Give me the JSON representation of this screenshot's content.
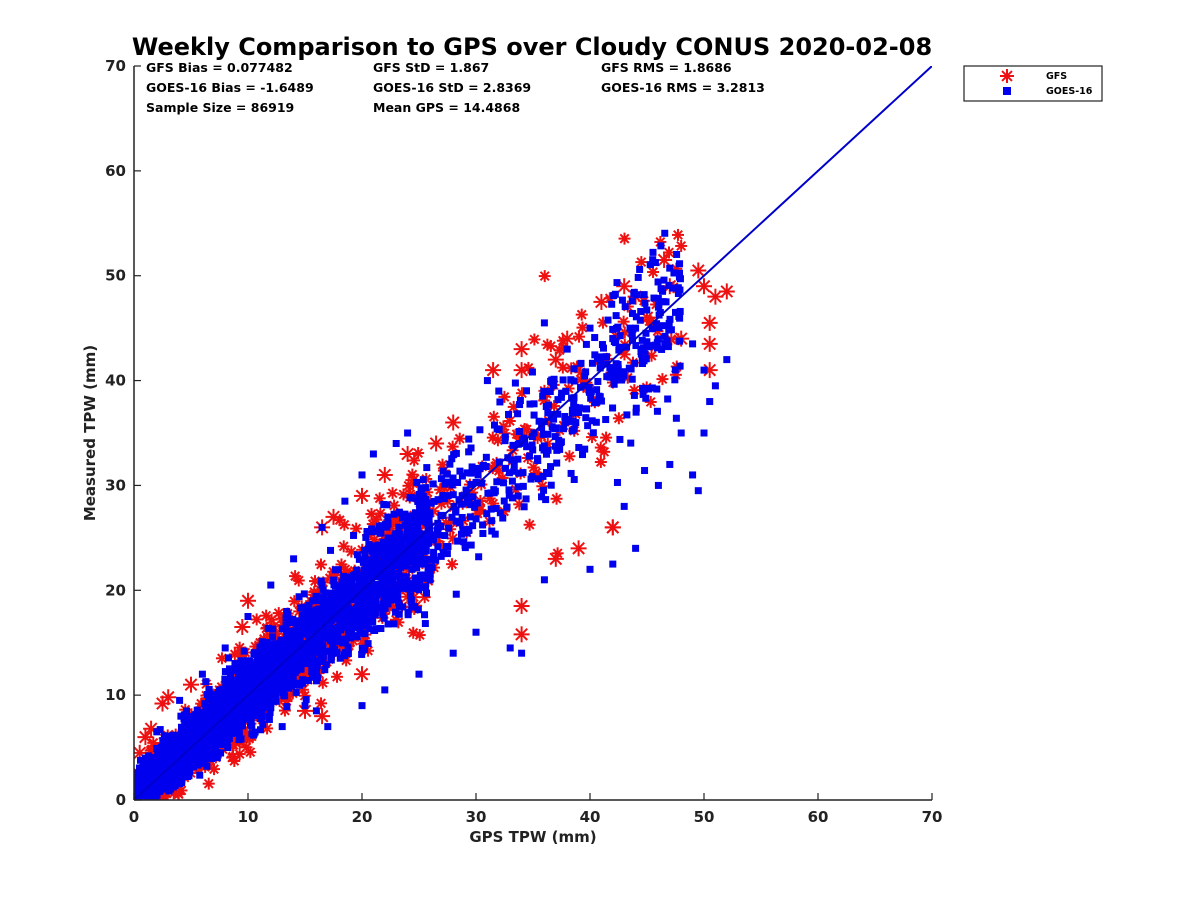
{
  "chart_data": {
    "type": "scatter",
    "title": "Weekly Comparison to GPS over Cloudy CONUS 2020-02-08",
    "xlabel": "GPS TPW (mm)",
    "ylabel": "Measured TPW (mm)",
    "xlim": [
      0,
      70
    ],
    "ylim": [
      0,
      70
    ],
    "xticks": [
      0,
      10,
      20,
      30,
      40,
      50,
      60,
      70
    ],
    "yticks": [
      0,
      10,
      20,
      30,
      40,
      50,
      60,
      70
    ],
    "grid": false,
    "legend_position": "top-right, outside plot area",
    "reference_line": {
      "label": "1:1 line",
      "x": [
        0,
        70
      ],
      "y": [
        0,
        70
      ],
      "color": "#0000cc"
    },
    "series": [
      {
        "name": "GFS",
        "marker": "asterisk",
        "color": "#ee1111",
        "sample_points": [
          [
            0.5,
            4.5
          ],
          [
            1,
            6
          ],
          [
            1.5,
            6.8
          ],
          [
            2.5,
            9.2
          ],
          [
            3,
            9.8
          ],
          [
            5,
            11
          ],
          [
            9.5,
            16.5
          ],
          [
            10,
            19
          ],
          [
            16.5,
            8
          ],
          [
            16.5,
            26
          ],
          [
            17.5,
            27
          ],
          [
            20,
            29
          ],
          [
            22,
            31
          ],
          [
            24,
            33
          ],
          [
            24.5,
            30.5
          ],
          [
            26.5,
            34
          ],
          [
            28,
            36
          ],
          [
            31.5,
            41
          ],
          [
            34,
            43
          ],
          [
            34,
            41
          ],
          [
            34,
            15.8
          ],
          [
            34,
            18.5
          ],
          [
            37,
            42
          ],
          [
            37,
            23
          ],
          [
            38,
            44
          ],
          [
            39,
            24
          ],
          [
            41,
            47.5
          ],
          [
            42,
            26
          ],
          [
            43,
            49
          ],
          [
            44,
            48
          ],
          [
            45,
            46
          ],
          [
            46.5,
            51.5
          ],
          [
            47,
            49
          ],
          [
            48,
            44
          ],
          [
            49.5,
            50.5
          ],
          [
            50,
            49
          ],
          [
            50.5,
            45.5
          ],
          [
            50.5,
            43.5
          ],
          [
            50.5,
            41
          ],
          [
            51,
            48
          ],
          [
            52,
            48.5
          ],
          [
            42,
            26
          ],
          [
            20,
            12
          ],
          [
            15,
            8.5
          ]
        ]
      },
      {
        "name": "GOES-16",
        "marker": "square",
        "color": "#0000ee",
        "sample_points": [
          [
            31,
            40
          ],
          [
            32,
            39
          ],
          [
            36,
            45.5
          ],
          [
            38,
            43
          ],
          [
            40,
            45
          ],
          [
            42,
            44
          ],
          [
            44,
            45
          ],
          [
            46,
            47
          ],
          [
            47.5,
            46.5
          ],
          [
            49,
            43.5
          ],
          [
            50,
            41
          ],
          [
            50.5,
            38
          ],
          [
            51,
            39.5
          ],
          [
            52,
            42
          ],
          [
            46,
            30
          ],
          [
            47,
            32
          ],
          [
            48,
            35
          ],
          [
            49,
            31
          ],
          [
            49.5,
            29.5
          ],
          [
            50,
            35
          ],
          [
            43,
            28
          ],
          [
            44,
            24
          ],
          [
            42,
            22.5
          ],
          [
            40,
            22
          ],
          [
            36,
            21
          ],
          [
            33,
            14.5
          ],
          [
            34,
            14
          ],
          [
            30,
            16
          ],
          [
            28,
            14
          ],
          [
            25,
            12
          ],
          [
            22,
            10.5
          ],
          [
            20,
            9
          ],
          [
            17,
            7
          ],
          [
            16,
            8.5
          ],
          [
            15,
            9
          ],
          [
            13,
            7
          ],
          [
            24,
            35
          ],
          [
            23,
            34
          ],
          [
            21,
            33
          ],
          [
            20,
            31
          ],
          [
            18.5,
            28.5
          ],
          [
            16.5,
            26
          ],
          [
            14,
            23
          ],
          [
            12,
            20.5
          ],
          [
            10,
            17.5
          ],
          [
            8,
            14.5
          ],
          [
            6,
            12
          ],
          [
            4,
            9.5
          ],
          [
            2,
            6.5
          ],
          [
            1,
            4
          ],
          [
            0.5,
            1.5
          ],
          [
            1,
            0.5
          ]
        ]
      }
    ]
  },
  "stats": {
    "gfs_bias": "GFS Bias = 0.077482",
    "gfs_std": "GFS StD = 1.867",
    "gfs_rms": "GFS RMS = 1.8686",
    "goes_bias": "GOES-16 Bias = -1.6489",
    "goes_std": "GOES-16 StD = 2.8369",
    "goes_rms": "GOES-16 RMS = 3.2813",
    "sample_size": "Sample Size = 86919",
    "mean_gps": "Mean GPS = 14.4868"
  }
}
